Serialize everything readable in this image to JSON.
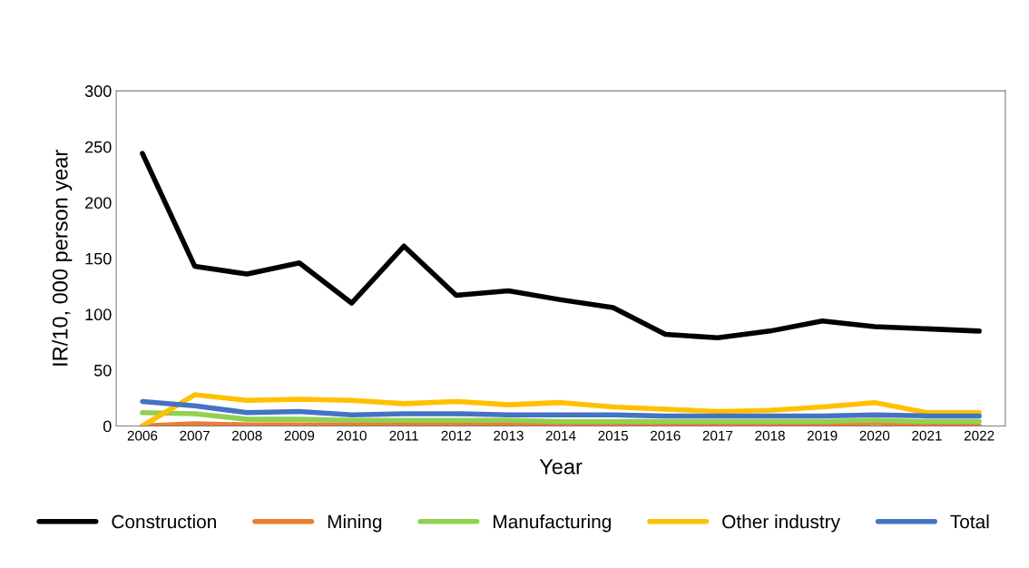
{
  "chart_data": {
    "type": "line",
    "xlabel": "Year",
    "ylabel": "IR/10, 000 person year",
    "categories": [
      "2006",
      "2007",
      "2008",
      "2009",
      "2010",
      "2011",
      "2012",
      "2013",
      "2014",
      "2015",
      "2016",
      "2017",
      "2018",
      "2019",
      "2020",
      "2021",
      "2022"
    ],
    "ylim": [
      0,
      300
    ],
    "yticks": [
      0,
      50,
      100,
      150,
      200,
      250,
      300
    ],
    "grid": false,
    "legend": "bottom",
    "marker": "none",
    "line_style": "solid",
    "series": [
      {
        "name": "Construction",
        "color": "#000000",
        "values": [
          244,
          143,
          136,
          146,
          110,
          161,
          117,
          121,
          113,
          106,
          82,
          79,
          85,
          94,
          89,
          87,
          85
        ]
      },
      {
        "name": "Mining",
        "color": "#ed7d31",
        "values": [
          0,
          2,
          1,
          1,
          1,
          1,
          1,
          1,
          1,
          0,
          0,
          0,
          0,
          0,
          3,
          1,
          0
        ]
      },
      {
        "name": "Manufacturing",
        "color": "#92d050",
        "values": [
          12,
          11,
          6,
          6,
          5,
          5,
          5,
          5,
          4,
          4,
          4,
          4,
          4,
          4,
          5,
          4,
          4
        ]
      },
      {
        "name": "Other industry",
        "color": "#ffc000",
        "values": [
          0,
          28,
          23,
          24,
          23,
          20,
          22,
          19,
          21,
          17,
          15,
          13,
          14,
          17,
          21,
          12,
          12
        ]
      },
      {
        "name": "Total",
        "color": "#4472c4",
        "values": [
          22,
          18,
          12,
          13,
          10,
          11,
          11,
          10,
          10,
          10,
          9,
          9,
          9,
          9,
          10,
          9,
          9
        ]
      }
    ]
  }
}
